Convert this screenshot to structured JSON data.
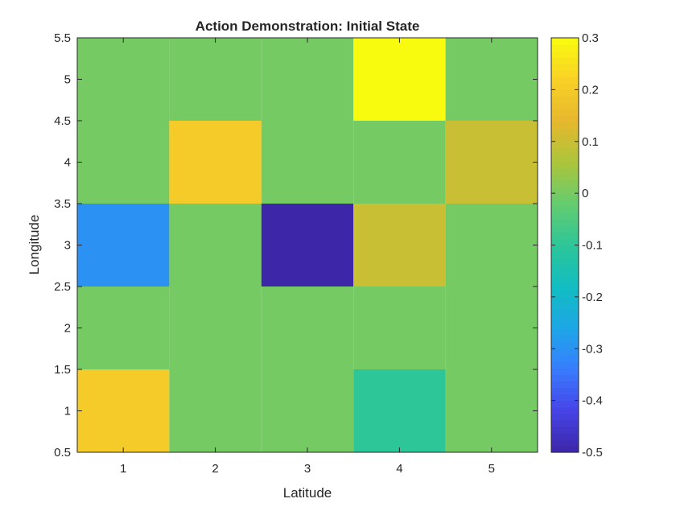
{
  "chart_data": {
    "type": "heatmap",
    "title": "Action Demonstration: Initial State",
    "xlabel": "Latitude",
    "ylabel": "Longitude",
    "x": [
      1,
      2,
      3,
      4,
      5
    ],
    "y": [
      1,
      2,
      3,
      4,
      5
    ],
    "xlim": [
      0.5,
      5.5
    ],
    "ylim": [
      0.5,
      5.5
    ],
    "x_ticks": [
      "1",
      "2",
      "3",
      "4",
      "5"
    ],
    "y_ticks": [
      "0.5",
      "1",
      "1.5",
      "2",
      "2.5",
      "3",
      "3.5",
      "4",
      "4.5",
      "5",
      "5.5"
    ],
    "values": [
      [
        0.2,
        0,
        0,
        -0.1,
        0
      ],
      [
        0,
        0,
        0,
        0,
        0
      ],
      [
        -0.3,
        0,
        -0.5,
        0.1,
        0
      ],
      [
        0,
        0.2,
        0,
        0,
        0.1
      ],
      [
        0,
        0,
        0,
        0.3,
        0
      ]
    ],
    "clim": [
      -0.5,
      0.3
    ],
    "colormap": "parula",
    "colorbar_ticks": [
      "0.3",
      "0.2",
      "0.1",
      "0",
      "-0.1",
      "-0.2",
      "-0.3",
      "-0.4",
      "-0.5"
    ],
    "colorbar_location": "right",
    "grid": false
  }
}
